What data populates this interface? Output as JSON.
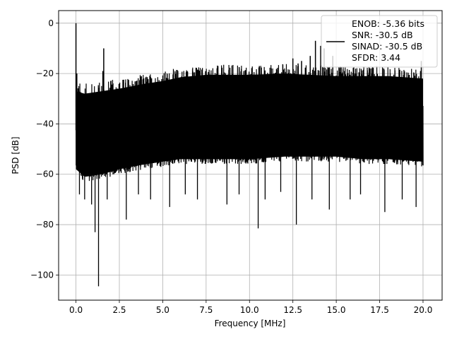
{
  "chart_data": {
    "type": "line",
    "title": "",
    "xlabel": "Frequency [MHz]",
    "ylabel": "PSD [dB]",
    "xlim": [
      -1,
      21.1
    ],
    "ylim": [
      -110,
      5
    ],
    "xticks": [
      0,
      2.5,
      5,
      7.5,
      10,
      12.5,
      15,
      17.5,
      20
    ],
    "xtick_labels": [
      "0.0",
      "2.5",
      "5.0",
      "7.5",
      "10.0",
      "12.5",
      "15.0",
      "17.5",
      "20.0"
    ],
    "yticks": [
      0,
      -20,
      -40,
      -60,
      -80,
      -100
    ],
    "ytick_labels": [
      "0",
      "−20",
      "−40",
      "−60",
      "−80",
      "−100"
    ],
    "grid": true,
    "legend_position": "top-right",
    "legend_lines": [
      "ENOB: -5.36 bits",
      "SNR: -30.5 dB",
      "SINAD: -30.5 dB",
      "SFDR: 3.44"
    ],
    "series_color": "#000000",
    "noise_envelope": {
      "x": [
        0,
        0.5,
        1.5,
        2.5,
        4,
        5,
        6,
        7.5,
        10,
        12,
        13.5,
        15,
        16.5,
        18,
        20
      ],
      "upper": [
        -23,
        -24,
        -23,
        -22,
        -20,
        -19,
        -17.5,
        -16.5,
        -16.5,
        -16,
        -16.5,
        -17,
        -17,
        -17,
        -18
      ],
      "lower": [
        -62,
        -65,
        -64,
        -62,
        -60,
        -59,
        -58,
        -58,
        -58,
        -57,
        -57,
        -57,
        -58,
        -58,
        -59
      ]
    },
    "peaks": [
      {
        "x": 0.0,
        "y": 0
      },
      {
        "x": 0.05,
        "y": -20
      },
      {
        "x": 1.6,
        "y": -10
      },
      {
        "x": 1.55,
        "y": -19
      },
      {
        "x": 12.5,
        "y": -14
      },
      {
        "x": 12.8,
        "y": -16
      },
      {
        "x": 13.0,
        "y": -15
      },
      {
        "x": 13.5,
        "y": -13
      },
      {
        "x": 13.8,
        "y": -7
      },
      {
        "x": 14.1,
        "y": -9
      },
      {
        "x": 14.3,
        "y": -10
      },
      {
        "x": 14.8,
        "y": -13
      },
      {
        "x": 19.9,
        "y": -15
      }
    ],
    "dips": [
      {
        "x": 0.2,
        "y": -68
      },
      {
        "x": 0.5,
        "y": -70
      },
      {
        "x": 0.9,
        "y": -72
      },
      {
        "x": 1.1,
        "y": -83
      },
      {
        "x": 1.3,
        "y": -104.5
      },
      {
        "x": 1.8,
        "y": -70
      },
      {
        "x": 2.9,
        "y": -78
      },
      {
        "x": 3.6,
        "y": -68
      },
      {
        "x": 4.3,
        "y": -70
      },
      {
        "x": 5.4,
        "y": -73
      },
      {
        "x": 6.3,
        "y": -68
      },
      {
        "x": 7.0,
        "y": -70
      },
      {
        "x": 8.7,
        "y": -72
      },
      {
        "x": 9.4,
        "y": -68
      },
      {
        "x": 10.5,
        "y": -81.5
      },
      {
        "x": 10.9,
        "y": -70
      },
      {
        "x": 11.8,
        "y": -67
      },
      {
        "x": 12.7,
        "y": -80
      },
      {
        "x": 13.6,
        "y": -70
      },
      {
        "x": 14.6,
        "y": -74
      },
      {
        "x": 15.8,
        "y": -70
      },
      {
        "x": 16.4,
        "y": -68
      },
      {
        "x": 17.8,
        "y": -75
      },
      {
        "x": 18.8,
        "y": -70
      },
      {
        "x": 19.6,
        "y": -73
      }
    ]
  }
}
